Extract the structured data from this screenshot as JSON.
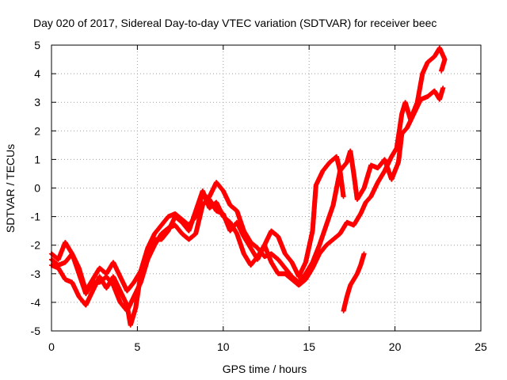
{
  "chart_data": {
    "type": "scatter",
    "title": "Day 020 of 2017, Sidereal Day-to-day VTEC variation (SDTVAR) for receiver beec",
    "xlabel": "GPS time / hours",
    "ylabel": "SDTVAR / TECUs",
    "xlim": [
      0,
      25
    ],
    "ylim": [
      -5,
      5
    ],
    "xticks": [
      "0",
      "5",
      "10",
      "15",
      "20",
      "25"
    ],
    "yticks": [
      "-5",
      "-4",
      "-3",
      "-2",
      "-1",
      "0",
      "1",
      "2",
      "3",
      "4",
      "5"
    ],
    "grid": true,
    "marker": "+",
    "color": "#ff0000",
    "series": [
      {
        "points": [
          [
            0.0,
            -2.3
          ],
          [
            0.4,
            -2.5
          ],
          [
            0.8,
            -1.9
          ],
          [
            1.2,
            -2.3
          ],
          [
            1.6,
            -2.8
          ],
          [
            2.0,
            -3.6
          ],
          [
            2.4,
            -3.2
          ],
          [
            2.8,
            -2.8
          ],
          [
            3.2,
            -3.0
          ],
          [
            3.6,
            -2.6
          ],
          [
            4.0,
            -3.1
          ],
          [
            4.4,
            -3.6
          ],
          [
            4.8,
            -3.3
          ],
          [
            5.2,
            -2.9
          ],
          [
            5.6,
            -2.1
          ],
          [
            6.0,
            -1.6
          ],
          [
            6.4,
            -1.3
          ],
          [
            6.8,
            -1.0
          ],
          [
            7.2,
            -0.9
          ],
          [
            7.6,
            -1.1
          ],
          [
            8.0,
            -1.3
          ],
          [
            8.4,
            -1.0
          ],
          [
            8.8,
            -0.2
          ],
          [
            9.2,
            -0.4
          ],
          [
            9.6,
            -0.8
          ],
          [
            10.0,
            -0.9
          ],
          [
            10.4,
            -1.5
          ],
          [
            10.8,
            -1.2
          ],
          [
            11.2,
            -1.7
          ],
          [
            11.6,
            -2.1
          ],
          [
            12.0,
            -2.5
          ],
          [
            12.4,
            -2.0
          ],
          [
            12.8,
            -1.5
          ],
          [
            13.2,
            -1.7
          ],
          [
            13.6,
            -2.3
          ],
          [
            14.0,
            -2.6
          ],
          [
            14.4,
            -3.1
          ],
          [
            14.8,
            -2.6
          ],
          [
            15.2,
            -1.5
          ],
          [
            15.4,
            0.1
          ],
          [
            15.8,
            0.6
          ],
          [
            16.2,
            0.9
          ],
          [
            16.6,
            1.1
          ],
          [
            16.8,
            0.6
          ],
          [
            17.0,
            -0.3
          ]
        ]
      },
      {
        "points": [
          [
            0.0,
            -2.7
          ],
          [
            0.4,
            -2.8
          ],
          [
            0.8,
            -3.2
          ],
          [
            1.2,
            -3.3
          ],
          [
            1.6,
            -3.8
          ],
          [
            2.0,
            -4.1
          ],
          [
            2.4,
            -3.6
          ],
          [
            2.8,
            -3.1
          ],
          [
            3.2,
            -3.5
          ],
          [
            3.6,
            -3.1
          ],
          [
            4.0,
            -3.6
          ],
          [
            4.4,
            -4.1
          ],
          [
            4.6,
            -4.8
          ],
          [
            4.9,
            -4.2
          ],
          [
            5.2,
            -3.0
          ],
          [
            5.6,
            -2.5
          ],
          [
            6.0,
            -2.0
          ],
          [
            6.4,
            -1.6
          ],
          [
            6.8,
            -1.4
          ],
          [
            7.2,
            -1.3
          ],
          [
            7.6,
            -1.6
          ],
          [
            8.0,
            -1.8
          ],
          [
            8.4,
            -1.6
          ],
          [
            8.8,
            -0.6
          ],
          [
            9.2,
            -0.3
          ],
          [
            9.6,
            0.2
          ],
          [
            10.0,
            -0.1
          ],
          [
            10.4,
            -0.6
          ],
          [
            10.8,
            -0.8
          ],
          [
            11.2,
            -1.5
          ],
          [
            11.6,
            -1.9
          ],
          [
            12.0,
            -2.1
          ],
          [
            12.4,
            -2.4
          ],
          [
            12.8,
            -2.3
          ],
          [
            13.2,
            -2.5
          ],
          [
            13.6,
            -2.8
          ],
          [
            14.0,
            -3.1
          ],
          [
            14.4,
            -3.3
          ],
          [
            14.8,
            -3.0
          ],
          [
            15.2,
            -2.6
          ],
          [
            15.6,
            -2.0
          ],
          [
            16.0,
            -1.3
          ],
          [
            16.4,
            -0.6
          ],
          [
            16.8,
            0.6
          ],
          [
            17.2,
            0.9
          ],
          [
            17.4,
            1.3
          ],
          [
            17.6,
            0.5
          ],
          [
            17.8,
            -0.4
          ],
          [
            18.2,
            0.0
          ],
          [
            18.6,
            0.8
          ],
          [
            19.0,
            0.7
          ],
          [
            19.4,
            1.0
          ],
          [
            19.8,
            0.3
          ],
          [
            20.2,
            0.9
          ],
          [
            20.4,
            1.9
          ],
          [
            20.7,
            2.1
          ],
          [
            21.1,
            2.6
          ],
          [
            21.5,
            3.1
          ],
          [
            21.9,
            3.2
          ],
          [
            22.3,
            3.4
          ],
          [
            22.6,
            3.1
          ],
          [
            22.8,
            3.5
          ]
        ]
      },
      {
        "points": [
          [
            0.0,
            -2.5
          ],
          [
            0.4,
            -2.7
          ],
          [
            0.8,
            -2.6
          ],
          [
            1.2,
            -2.3
          ],
          [
            1.6,
            -3.0
          ],
          [
            2.0,
            -3.7
          ],
          [
            2.4,
            -3.3
          ],
          [
            2.8,
            -3.3
          ],
          [
            3.2,
            -3.1
          ],
          [
            3.6,
            -3.4
          ],
          [
            4.0,
            -4.0
          ],
          [
            4.4,
            -4.3
          ],
          [
            4.8,
            -3.8
          ],
          [
            5.2,
            -3.3
          ],
          [
            5.6,
            -2.5
          ],
          [
            6.0,
            -1.8
          ],
          [
            6.4,
            -1.8
          ],
          [
            6.8,
            -1.5
          ],
          [
            7.2,
            -1.0
          ],
          [
            7.6,
            -1.2
          ],
          [
            8.0,
            -1.5
          ],
          [
            8.4,
            -0.8
          ],
          [
            8.8,
            -0.1
          ],
          [
            9.2,
            -0.7
          ],
          [
            9.6,
            -0.5
          ],
          [
            10.0,
            -1.0
          ],
          [
            10.4,
            -1.2
          ],
          [
            10.8,
            -1.6
          ],
          [
            11.2,
            -2.3
          ],
          [
            11.6,
            -2.7
          ],
          [
            12.0,
            -2.4
          ],
          [
            12.4,
            -2.0
          ],
          [
            12.8,
            -2.6
          ],
          [
            13.2,
            -3.0
          ],
          [
            13.6,
            -3.0
          ],
          [
            14.0,
            -3.2
          ],
          [
            14.4,
            -3.4
          ],
          [
            14.8,
            -3.2
          ],
          [
            15.2,
            -2.8
          ],
          [
            15.6,
            -2.3
          ],
          [
            16.0,
            -2.0
          ],
          [
            16.4,
            -1.8
          ],
          [
            16.8,
            -1.6
          ],
          [
            17.2,
            -1.2
          ],
          [
            17.6,
            -1.3
          ],
          [
            18.0,
            -0.9
          ],
          [
            18.3,
            -0.5
          ],
          [
            18.6,
            -0.3
          ],
          [
            19.0,
            0.2
          ],
          [
            19.4,
            0.6
          ],
          [
            19.8,
            1.1
          ],
          [
            20.1,
            1.4
          ],
          [
            20.4,
            2.6
          ],
          [
            20.6,
            3.0
          ],
          [
            20.9,
            2.4
          ],
          [
            21.3,
            3.0
          ],
          [
            21.6,
            4.0
          ],
          [
            21.9,
            4.4
          ],
          [
            22.3,
            4.6
          ],
          [
            22.6,
            4.9
          ],
          [
            22.9,
            4.5
          ],
          [
            22.7,
            4.1
          ]
        ]
      },
      {
        "points": [
          [
            17.0,
            -4.3
          ],
          [
            17.2,
            -3.8
          ],
          [
            17.4,
            -3.4
          ],
          [
            17.6,
            -3.2
          ],
          [
            17.8,
            -3.0
          ],
          [
            18.0,
            -2.7
          ],
          [
            18.1,
            -2.5
          ],
          [
            18.2,
            -2.3
          ]
        ]
      }
    ]
  }
}
